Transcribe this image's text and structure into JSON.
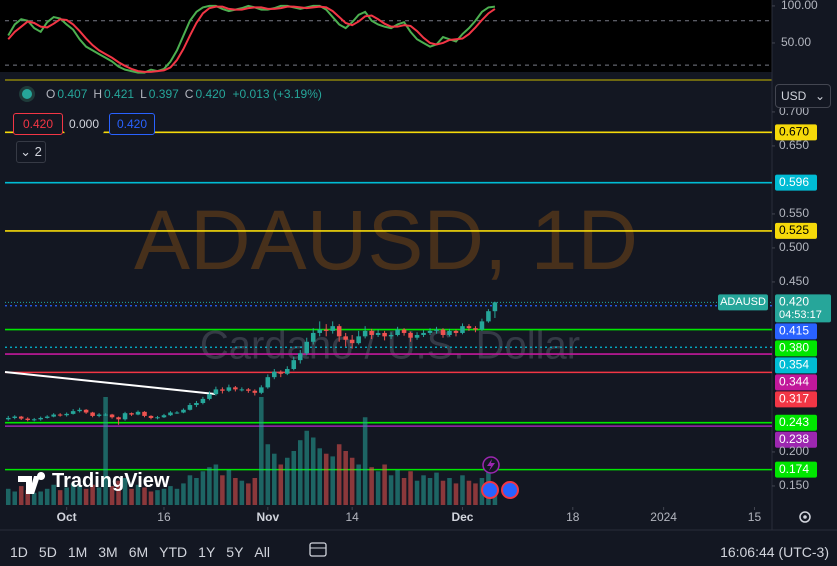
{
  "chart_data": {
    "type": "candlestick",
    "symbol_watermark": "ADAUSD, 1D",
    "name_watermark": "Cardano / U.S. Dollar",
    "legend": {
      "fields": [
        {
          "key": "O",
          "value": "0.407"
        },
        {
          "key": "H",
          "value": "0.421"
        },
        {
          "key": "L",
          "value": "0.397"
        },
        {
          "key": "C",
          "value": "0.420"
        }
      ],
      "change": "+0.013 (+3.19%)"
    },
    "order_panel": {
      "sell": "0.420",
      "spread": "0.000",
      "buy": "0.420"
    },
    "indicator_count": "2",
    "currency": "USD",
    "branding": "TradingView",
    "up_color": "#26a69a",
    "down_color": "#ef5350",
    "ylim": [
      0.122,
      0.744
    ],
    "yticks": [
      {
        "value": 0.7,
        "label": "0.700"
      },
      {
        "value": 0.65,
        "label": "0.650"
      },
      {
        "value": 0.55,
        "label": "0.550"
      },
      {
        "value": 0.5,
        "label": "0.500"
      },
      {
        "value": 0.45,
        "label": "0.450"
      },
      {
        "value": 0.2,
        "label": "0.200"
      },
      {
        "value": 0.15,
        "label": "0.150"
      }
    ],
    "xlim": [
      -0.5,
      117.7
    ],
    "xticks": [
      {
        "value": 9,
        "label": "Oct"
      },
      {
        "value": 24,
        "label": "16"
      },
      {
        "value": 40,
        "label": "Nov"
      },
      {
        "value": 53,
        "label": "14"
      },
      {
        "value": 70,
        "label": "Dec"
      },
      {
        "value": 87,
        "label": "18"
      },
      {
        "value": 101,
        "label": "2024"
      },
      {
        "value": 115,
        "label": "15"
      }
    ],
    "price_line": {
      "value": 0.42,
      "label": "0.420",
      "name": "ADAUSD",
      "countdown": "04:53:17",
      "color": "#26a69a"
    },
    "levels": [
      {
        "value": 0.67,
        "label": "0.670",
        "color": "#f5d90a",
        "style": "solid"
      },
      {
        "value": 0.596,
        "label": "0.596",
        "color": "#00bcd4",
        "style": "solid"
      },
      {
        "value": 0.525,
        "label": "0.525",
        "color": "#f5d90a",
        "style": "solid"
      },
      {
        "value": 0.415,
        "label": "0.415",
        "color": "#2962ff",
        "style": "dotted"
      },
      {
        "value": 0.38,
        "label": "0.380",
        "color": "#00e600",
        "style": "solid"
      },
      {
        "value": 0.354,
        "label": "0.354",
        "color": "#00bcd4",
        "style": "dotted"
      },
      {
        "value": 0.344,
        "label": "0.344",
        "color": "#c2189b",
        "style": "solid"
      },
      {
        "value": 0.317,
        "label": "0.317",
        "color": "#f23645",
        "style": "solid"
      },
      {
        "value": 0.243,
        "label": "0.243",
        "color": "#00e600",
        "style": "solid"
      },
      {
        "value": 0.238,
        "label": "0.238",
        "color": "#9c27b0",
        "style": "solid"
      },
      {
        "value": 0.174,
        "label": "0.174",
        "color": "#00e600",
        "style": "solid"
      }
    ],
    "candles": [
      [
        0.248,
        0.253,
        0.246,
        0.25
      ],
      [
        0.25,
        0.254,
        0.248,
        0.252
      ],
      [
        0.252,
        0.253,
        0.247,
        0.249
      ],
      [
        0.249,
        0.251,
        0.245,
        0.247
      ],
      [
        0.247,
        0.25,
        0.245,
        0.248
      ],
      [
        0.248,
        0.252,
        0.246,
        0.25
      ],
      [
        0.25,
        0.254,
        0.249,
        0.252
      ],
      [
        0.252,
        0.257,
        0.251,
        0.255
      ],
      [
        0.255,
        0.257,
        0.252,
        0.254
      ],
      [
        0.254,
        0.258,
        0.252,
        0.256
      ],
      [
        0.256,
        0.263,
        0.255,
        0.26
      ],
      [
        0.26,
        0.265,
        0.258,
        0.262
      ],
      [
        0.262,
        0.263,
        0.256,
        0.258
      ],
      [
        0.258,
        0.259,
        0.251,
        0.253
      ],
      [
        0.253,
        0.257,
        0.251,
        0.255
      ],
      [
        0.255,
        0.257,
        0.253,
        0.255
      ],
      [
        0.255,
        0.256,
        0.249,
        0.251
      ],
      [
        0.251,
        0.252,
        0.24,
        0.248
      ],
      [
        0.248,
        0.259,
        0.246,
        0.257
      ],
      [
        0.257,
        0.258,
        0.253,
        0.255
      ],
      [
        0.255,
        0.261,
        0.254,
        0.259
      ],
      [
        0.259,
        0.26,
        0.251,
        0.253
      ],
      [
        0.253,
        0.254,
        0.248,
        0.25
      ],
      [
        0.25,
        0.253,
        0.248,
        0.251
      ],
      [
        0.251,
        0.256,
        0.25,
        0.254
      ],
      [
        0.254,
        0.26,
        0.253,
        0.258
      ],
      [
        0.258,
        0.26,
        0.256,
        0.258
      ],
      [
        0.258,
        0.264,
        0.257,
        0.262
      ],
      [
        0.262,
        0.272,
        0.261,
        0.269
      ],
      [
        0.269,
        0.275,
        0.266,
        0.272
      ],
      [
        0.272,
        0.281,
        0.27,
        0.278
      ],
      [
        0.278,
        0.289,
        0.276,
        0.285
      ],
      [
        0.285,
        0.296,
        0.283,
        0.292
      ],
      [
        0.292,
        0.295,
        0.286,
        0.29
      ],
      [
        0.29,
        0.299,
        0.288,
        0.295
      ],
      [
        0.295,
        0.297,
        0.289,
        0.292
      ],
      [
        0.292,
        0.295,
        0.289,
        0.292
      ],
      [
        0.292,
        0.294,
        0.287,
        0.29
      ],
      [
        0.29,
        0.292,
        0.283,
        0.287
      ],
      [
        0.287,
        0.298,
        0.285,
        0.295
      ],
      [
        0.295,
        0.314,
        0.293,
        0.31
      ],
      [
        0.31,
        0.322,
        0.307,
        0.318
      ],
      [
        0.318,
        0.32,
        0.31,
        0.315
      ],
      [
        0.315,
        0.326,
        0.313,
        0.322
      ],
      [
        0.322,
        0.34,
        0.32,
        0.335
      ],
      [
        0.335,
        0.35,
        0.33,
        0.345
      ],
      [
        0.345,
        0.368,
        0.342,
        0.362
      ],
      [
        0.362,
        0.382,
        0.358,
        0.375
      ],
      [
        0.375,
        0.392,
        0.37,
        0.38
      ],
      [
        0.38,
        0.388,
        0.37,
        0.378
      ],
      [
        0.378,
        0.392,
        0.374,
        0.385
      ],
      [
        0.385,
        0.388,
        0.362,
        0.37
      ],
      [
        0.37,
        0.375,
        0.355,
        0.365
      ],
      [
        0.365,
        0.372,
        0.352,
        0.36
      ],
      [
        0.36,
        0.378,
        0.358,
        0.37
      ],
      [
        0.37,
        0.385,
        0.367,
        0.378
      ],
      [
        0.378,
        0.381,
        0.366,
        0.372
      ],
      [
        0.372,
        0.38,
        0.369,
        0.375
      ],
      [
        0.375,
        0.378,
        0.364,
        0.37
      ],
      [
        0.37,
        0.376,
        0.366,
        0.372
      ],
      [
        0.372,
        0.384,
        0.37,
        0.38
      ],
      [
        0.38,
        0.382,
        0.371,
        0.375
      ],
      [
        0.375,
        0.377,
        0.362,
        0.368
      ],
      [
        0.368,
        0.376,
        0.365,
        0.372
      ],
      [
        0.372,
        0.379,
        0.369,
        0.375
      ],
      [
        0.375,
        0.382,
        0.372,
        0.378
      ],
      [
        0.378,
        0.384,
        0.374,
        0.38
      ],
      [
        0.38,
        0.382,
        0.368,
        0.372
      ],
      [
        0.372,
        0.381,
        0.37,
        0.378
      ],
      [
        0.378,
        0.38,
        0.37,
        0.375
      ],
      [
        0.375,
        0.389,
        0.373,
        0.385
      ],
      [
        0.385,
        0.388,
        0.378,
        0.382
      ],
      [
        0.382,
        0.385,
        0.376,
        0.38
      ],
      [
        0.38,
        0.396,
        0.378,
        0.392
      ],
      [
        0.392,
        0.41,
        0.39,
        0.407
      ],
      [
        0.407,
        0.421,
        0.397,
        0.42
      ]
    ],
    "volume_ylim": [
      0,
      100
    ],
    "volume": [
      12,
      10,
      14,
      11,
      9,
      10,
      12,
      15,
      11,
      13,
      16,
      14,
      12,
      15,
      13,
      80,
      14,
      18,
      20,
      12,
      15,
      13,
      10,
      11,
      12,
      14,
      12,
      16,
      22,
      20,
      25,
      28,
      30,
      22,
      26,
      20,
      18,
      16,
      20,
      80,
      45,
      38,
      30,
      35,
      40,
      48,
      55,
      50,
      42,
      38,
      36,
      45,
      40,
      35,
      30,
      65,
      28,
      25,
      30,
      22,
      26,
      20,
      25,
      18,
      22,
      20,
      24,
      18,
      20,
      16,
      22,
      18,
      16,
      20,
      26,
      14
    ],
    "indicator": {
      "ylim": [
        13.5,
        108
      ],
      "yticks": [
        {
          "value": 100,
          "label": "100.00"
        },
        {
          "value": 50,
          "label": "50.00"
        }
      ],
      "hlines": [
        80,
        20
      ],
      "series": [
        {
          "color": "#4caf50",
          "values": [
            60,
            75,
            82,
            80,
            70,
            65,
            78,
            85,
            83,
            75,
            68,
            55,
            45,
            40,
            35,
            30,
            25,
            18,
            14,
            12,
            10,
            10,
            14,
            12,
            15,
            25,
            40,
            60,
            80,
            92,
            98,
            100,
            100,
            96,
            93,
            95,
            97,
            100,
            98,
            95,
            95,
            97,
            100,
            100,
            98,
            96,
            98,
            100,
            100,
            95,
            85,
            75,
            70,
            78,
            88,
            92,
            80,
            75,
            72,
            70,
            75,
            78,
            65,
            55,
            50,
            45,
            48,
            58,
            55,
            52,
            62,
            70,
            80,
            92,
            98,
            99
          ]
        },
        {
          "color": "#f23645",
          "values": [
            55,
            65,
            72,
            79,
            77,
            72,
            71,
            76,
            82,
            81,
            75,
            66,
            56,
            47,
            40,
            35,
            30,
            24,
            19,
            15,
            12,
            11,
            11,
            12,
            13,
            17,
            27,
            42,
            60,
            77,
            90,
            97,
            99,
            99,
            96,
            95,
            95,
            97,
            98,
            98,
            96,
            96,
            97,
            99,
            99,
            98,
            97,
            98,
            99,
            98,
            93,
            85,
            77,
            74,
            79,
            86,
            87,
            82,
            76,
            72,
            72,
            74,
            73,
            66,
            57,
            50,
            48,
            50,
            54,
            55,
            56,
            62,
            71,
            81,
            90,
            96
          ]
        }
      ]
    },
    "toolbar": {
      "ranges": [
        "1D",
        "5D",
        "1M",
        "3M",
        "6M",
        "YTD",
        "1Y",
        "5Y",
        "All"
      ],
      "clock": "16:06:44 (UTC-3)"
    }
  }
}
